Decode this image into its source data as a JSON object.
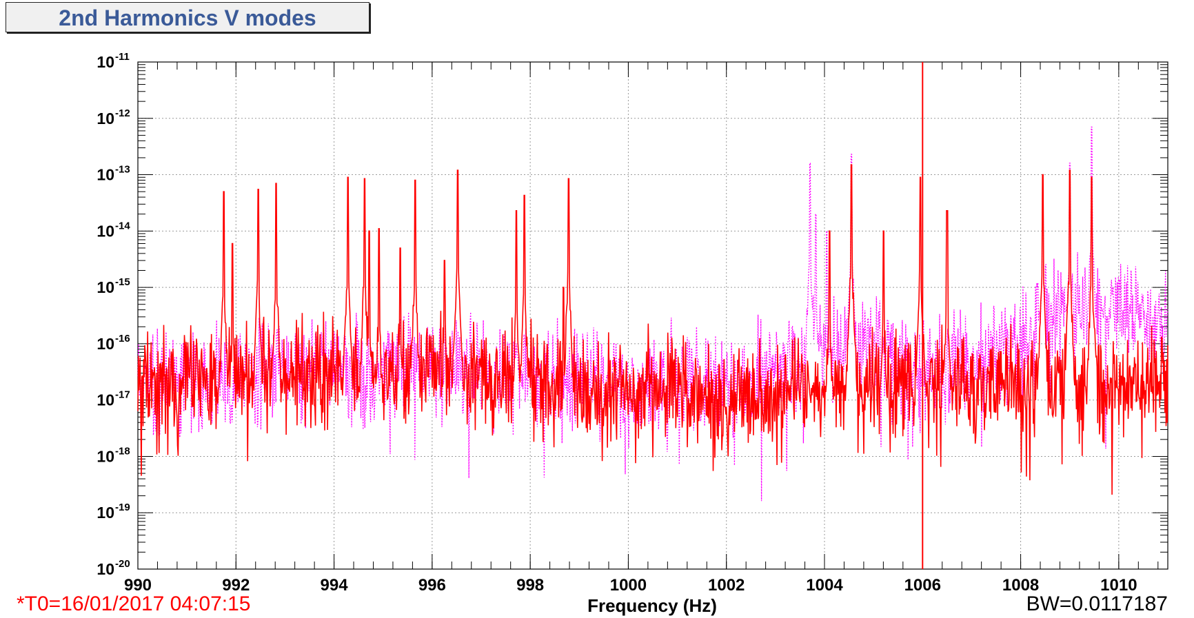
{
  "title": "2nd Harmonics V modes",
  "footer": {
    "t0": "*T0=16/01/2017 04:07:15",
    "bw": "BW=0.0117187"
  },
  "colors": {
    "primary": "#ff0000",
    "reference": "#ff00ff",
    "title_text": "#3a5a98",
    "marker": "#ff0000"
  },
  "chart_data": {
    "type": "line",
    "title": "2nd Harmonics V modes",
    "xlabel": "Frequency (Hz)",
    "ylabel": "",
    "xlim": [
      990,
      1011
    ],
    "ylim": [
      1e-20,
      1e-11
    ],
    "yscale": "log",
    "grid": true,
    "x_ticks": [
      990,
      992,
      994,
      996,
      998,
      1000,
      1002,
      1004,
      1006,
      1008,
      1010
    ],
    "y_ticks": [
      {
        "value": 1e-11,
        "mantissa": "10",
        "exponent": "-11"
      },
      {
        "value": 1e-12,
        "mantissa": "10",
        "exponent": "-12"
      },
      {
        "value": 1e-13,
        "mantissa": "10",
        "exponent": "-13"
      },
      {
        "value": 1e-14,
        "mantissa": "10",
        "exponent": "-14"
      },
      {
        "value": 1e-15,
        "mantissa": "10",
        "exponent": "-15"
      },
      {
        "value": 1e-16,
        "mantissa": "10",
        "exponent": "-16"
      },
      {
        "value": 1e-17,
        "mantissa": "10",
        "exponent": "-17"
      },
      {
        "value": 1e-18,
        "mantissa": "10",
        "exponent": "-18"
      },
      {
        "value": 1e-19,
        "mantissa": "10",
        "exponent": "-19"
      },
      {
        "value": 1e-20,
        "mantissa": "10",
        "exponent": "-20"
      }
    ],
    "marker_line_x": 1006,
    "series": [
      {
        "style": "solid",
        "color": "#ff0000",
        "noise_floor": [
          [
            990,
            1.5e-17
          ],
          [
            992,
            2.5e-17
          ],
          [
            994,
            3e-17
          ],
          [
            996,
            3e-17
          ],
          [
            998,
            2e-17
          ],
          [
            1000,
            1.2e-17
          ],
          [
            1002,
            1.2e-17
          ],
          [
            1004,
            1.5e-17
          ],
          [
            1006,
            2e-17
          ],
          [
            1008,
            1.8e-17
          ],
          [
            1010,
            2e-17
          ],
          [
            1011,
            2e-17
          ]
        ],
        "peaks": [
          [
            991.75,
            5e-14
          ],
          [
            991.93,
            6e-15
          ],
          [
            992.45,
            5.5e-14
          ],
          [
            992.82,
            7e-14
          ],
          [
            994.28,
            9e-14
          ],
          [
            994.62,
            8.5e-14
          ],
          [
            994.72,
            1e-14
          ],
          [
            994.92,
            1.1e-14
          ],
          [
            995.35,
            5e-15
          ],
          [
            995.65,
            8e-14
          ],
          [
            996.25,
            3e-15
          ],
          [
            996.52,
            1.2e-13
          ],
          [
            997.72,
            2.3e-14
          ],
          [
            997.88,
            4.3e-14
          ],
          [
            998.68,
            1e-15
          ],
          [
            998.78,
            8.5e-14
          ],
          [
            1004.1,
            1e-14
          ],
          [
            1004.55,
            1.5e-13
          ],
          [
            1005.2,
            1e-14
          ],
          [
            1005.95,
            9e-14
          ],
          [
            1006.5,
            2.3e-14
          ],
          [
            1008.45,
            1e-13
          ],
          [
            1009.0,
            1.2e-13
          ],
          [
            1009.45,
            9e-14
          ]
        ]
      },
      {
        "style": "dotted",
        "color": "#ff00ff",
        "noise_floor": [
          [
            990,
            2e-17
          ],
          [
            992,
            3e-17
          ],
          [
            994,
            4e-17
          ],
          [
            996,
            4e-17
          ],
          [
            998,
            2.5e-17
          ],
          [
            1000,
            2e-17
          ],
          [
            1002,
            2e-17
          ],
          [
            1003,
            3e-17
          ],
          [
            1004,
            1e-16
          ],
          [
            1005,
            8e-17
          ],
          [
            1006,
            3e-17
          ],
          [
            1008,
            1e-16
          ],
          [
            1009,
            5e-16
          ],
          [
            1010,
            4e-16
          ],
          [
            1011,
            2e-16
          ]
        ],
        "peaks": [
          [
            1003.7,
            1.6e-13
          ],
          [
            1003.82,
            2e-14
          ],
          [
            1004.05,
            1e-14
          ],
          [
            1004.55,
            2.3e-13
          ],
          [
            1008.45,
            8e-14
          ],
          [
            1009.0,
            1.6e-13
          ],
          [
            1009.45,
            7e-13
          ]
        ]
      }
    ]
  }
}
